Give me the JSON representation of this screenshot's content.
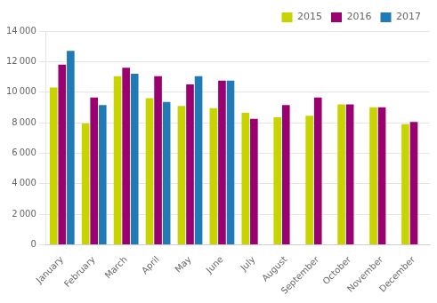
{
  "chart_data": {
    "type": "bar",
    "categories": [
      "January",
      "February",
      "March",
      "April",
      "May",
      "June",
      "July",
      "August",
      "September",
      "October",
      "November",
      "December"
    ],
    "series": [
      {
        "name": "2015",
        "color": "#c8d400",
        "values": [
          10300,
          7950,
          11050,
          9600,
          9100,
          8950,
          8650,
          8350,
          8450,
          9200,
          9000,
          7900
        ]
      },
      {
        "name": "2016",
        "color": "#9b0070",
        "values": [
          11800,
          9650,
          11600,
          11050,
          10500,
          10750,
          8250,
          9150,
          9650,
          9200,
          9000,
          8050
        ]
      },
      {
        "name": "2017",
        "color": "#1f7ab5",
        "values": [
          12700,
          9150,
          11200,
          9350,
          11050,
          10750,
          null,
          null,
          null,
          null,
          null,
          null
        ]
      }
    ],
    "ylim": [
      0,
      14000
    ],
    "yticks": [
      0,
      {
        "value": 2000,
        "label": "2 000"
      },
      {
        "value": 4000,
        "label": "4 000"
      },
      {
        "value": 6000,
        "label": "6 000"
      },
      {
        "value": 8000,
        "label": "8 000"
      },
      {
        "value": 10000,
        "label": "10 000"
      },
      {
        "value": 12000,
        "label": "12 000"
      },
      {
        "value": 14000,
        "label": "14 000"
      }
    ],
    "grid": true,
    "legend": "upper right"
  }
}
